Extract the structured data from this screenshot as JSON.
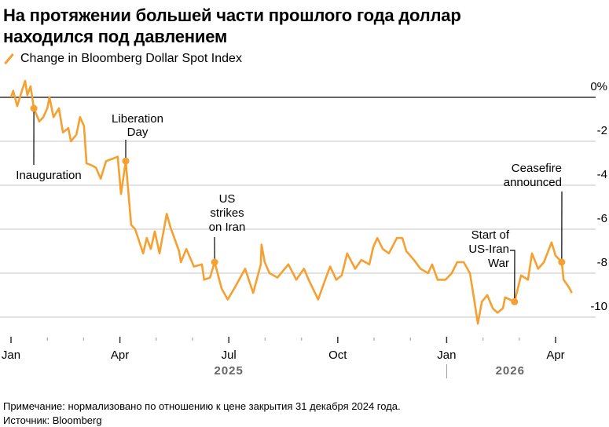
{
  "title_lines": [
    "На протяжении большей части прошлого года доллар",
    "находился под давлением"
  ],
  "legend": {
    "label": "Change in Bloomberg Dollar Spot Index"
  },
  "footnote": "Примечание: нормализовано по отношению к цене закрытия 31 декабря 2024 года.",
  "source": "Источник: Bloomberg",
  "colors": {
    "line": "#f5a030",
    "grid": "#d9d9d9",
    "zero": "#333333",
    "year": "#666666"
  },
  "chart_data": {
    "type": "line",
    "title": "На протяжении большей части прошлого года доллар находился под давлением",
    "series_name": "Change in Bloomberg Dollar Spot Index",
    "x_unit": "months since 1 Jan 2025",
    "ylabel": "%",
    "ylim": [
      -10,
      0
    ],
    "yticks": [
      0,
      -2,
      -4,
      -6,
      -8,
      -10
    ],
    "ytick_labels": [
      "0%",
      "-2",
      "-4",
      "-6",
      "-8",
      "-10"
    ],
    "xticks": [
      {
        "t": 0,
        "label": "Jan"
      },
      {
        "t": 3,
        "label": "Apr"
      },
      {
        "t": 6,
        "label": "Jul"
      },
      {
        "t": 9,
        "label": "Oct"
      },
      {
        "t": 12,
        "label": "Jan"
      },
      {
        "t": 15,
        "label": "Apr"
      }
    ],
    "year_labels": [
      {
        "t": 6,
        "label": "2025"
      },
      {
        "t": 13.75,
        "label": "2026"
      }
    ],
    "grid": true,
    "points": [
      [
        0.0,
        0.0
      ],
      [
        0.06,
        0.3
      ],
      [
        0.17,
        -0.4
      ],
      [
        0.3,
        0.3
      ],
      [
        0.39,
        0.75
      ],
      [
        0.45,
        0.1
      ],
      [
        0.54,
        0.5
      ],
      [
        0.63,
        -0.5
      ],
      [
        0.78,
        -1.1
      ],
      [
        0.89,
        -0.9
      ],
      [
        1.0,
        -0.5
      ],
      [
        1.06,
        0.0
      ],
      [
        1.17,
        -0.9
      ],
      [
        1.32,
        -0.5
      ],
      [
        1.43,
        -1.6
      ],
      [
        1.58,
        -1.4
      ],
      [
        1.65,
        -2.0
      ],
      [
        1.8,
        -1.7
      ],
      [
        1.9,
        -0.9
      ],
      [
        2.01,
        -1.3
      ],
      [
        2.08,
        -3.0
      ],
      [
        2.23,
        -3.1
      ],
      [
        2.34,
        -3.2
      ],
      [
        2.47,
        -3.7
      ],
      [
        2.62,
        -2.9
      ],
      [
        2.79,
        -2.8
      ],
      [
        2.94,
        -2.7
      ],
      [
        3.03,
        -4.4
      ],
      [
        3.16,
        -2.9
      ],
      [
        3.31,
        -5.8
      ],
      [
        3.42,
        -6.0
      ],
      [
        3.64,
        -7.1
      ],
      [
        3.74,
        -6.4
      ],
      [
        3.85,
        -6.9
      ],
      [
        3.96,
        -6.1
      ],
      [
        4.09,
        -7.1
      ],
      [
        4.29,
        -5.3
      ],
      [
        4.39,
        -5.9
      ],
      [
        4.63,
        -7.0
      ],
      [
        4.68,
        -7.5
      ],
      [
        4.83,
        -6.9
      ],
      [
        5.04,
        -7.7
      ],
      [
        5.26,
        -7.6
      ],
      [
        5.32,
        -8.3
      ],
      [
        5.48,
        -8.2
      ],
      [
        5.61,
        -7.5
      ],
      [
        5.8,
        -8.7
      ],
      [
        5.97,
        -9.2
      ],
      [
        6.15,
        -8.7
      ],
      [
        6.45,
        -7.8
      ],
      [
        6.67,
        -8.9
      ],
      [
        6.88,
        -7.6
      ],
      [
        6.9,
        -6.7
      ],
      [
        6.99,
        -7.5
      ],
      [
        7.12,
        -8.0
      ],
      [
        7.34,
        -8.2
      ],
      [
        7.64,
        -7.6
      ],
      [
        7.86,
        -8.3
      ],
      [
        8.07,
        -7.8
      ],
      [
        8.2,
        -8.3
      ],
      [
        8.46,
        -9.2
      ],
      [
        8.61,
        -8.5
      ],
      [
        8.79,
        -7.7
      ],
      [
        8.96,
        -8.3
      ],
      [
        9.11,
        -8.1
      ],
      [
        9.26,
        -7.1
      ],
      [
        9.48,
        -7.8
      ],
      [
        9.65,
        -7.4
      ],
      [
        9.87,
        -7.6
      ],
      [
        9.98,
        -6.8
      ],
      [
        10.09,
        -6.4
      ],
      [
        10.24,
        -6.9
      ],
      [
        10.41,
        -7.1
      ],
      [
        10.63,
        -6.4
      ],
      [
        10.78,
        -6.4
      ],
      [
        10.89,
        -7.0
      ],
      [
        11.1,
        -7.4
      ],
      [
        11.28,
        -7.8
      ],
      [
        11.49,
        -8.0
      ],
      [
        11.6,
        -7.6
      ],
      [
        11.75,
        -8.3
      ],
      [
        11.97,
        -8.3
      ],
      [
        12.14,
        -8.0
      ],
      [
        12.29,
        -7.5
      ],
      [
        12.47,
        -7.5
      ],
      [
        12.64,
        -8.0
      ],
      [
        12.73,
        -8.9
      ],
      [
        12.86,
        -10.3
      ],
      [
        12.97,
        -9.3
      ],
      [
        13.12,
        -9.0
      ],
      [
        13.27,
        -9.6
      ],
      [
        13.4,
        -9.8
      ],
      [
        13.55,
        -9.6
      ],
      [
        13.61,
        -9.1
      ],
      [
        13.87,
        -9.3
      ],
      [
        14.05,
        -8.1
      ],
      [
        14.24,
        -8.3
      ],
      [
        14.35,
        -7.1
      ],
      [
        14.52,
        -7.8
      ],
      [
        14.68,
        -7.5
      ],
      [
        14.89,
        -6.6
      ],
      [
        15.0,
        -7.2
      ],
      [
        15.17,
        -7.5
      ],
      [
        15.22,
        -8.3
      ],
      [
        15.35,
        -8.6
      ],
      [
        15.45,
        -8.9
      ]
    ],
    "annotations": [
      {
        "id": "inauguration",
        "t": 0.63,
        "v": -0.5,
        "lines": [
          "Inauguration"
        ]
      },
      {
        "id": "liberation-day",
        "t": 3.16,
        "v": -2.9,
        "lines": [
          "Liberation",
          "Day"
        ]
      },
      {
        "id": "us-strikes-on-iran",
        "t": 5.61,
        "v": -7.5,
        "lines": [
          "US",
          "strikes",
          "on Iran"
        ]
      },
      {
        "id": "start-of-us-iran-war",
        "t": 13.87,
        "v": -9.3,
        "lines": [
          "Start of",
          "US-Iran",
          "War"
        ]
      },
      {
        "id": "ceasefire-announced",
        "t": 15.17,
        "v": -7.5,
        "lines": [
          "Ceasefire",
          "announced"
        ]
      }
    ]
  }
}
